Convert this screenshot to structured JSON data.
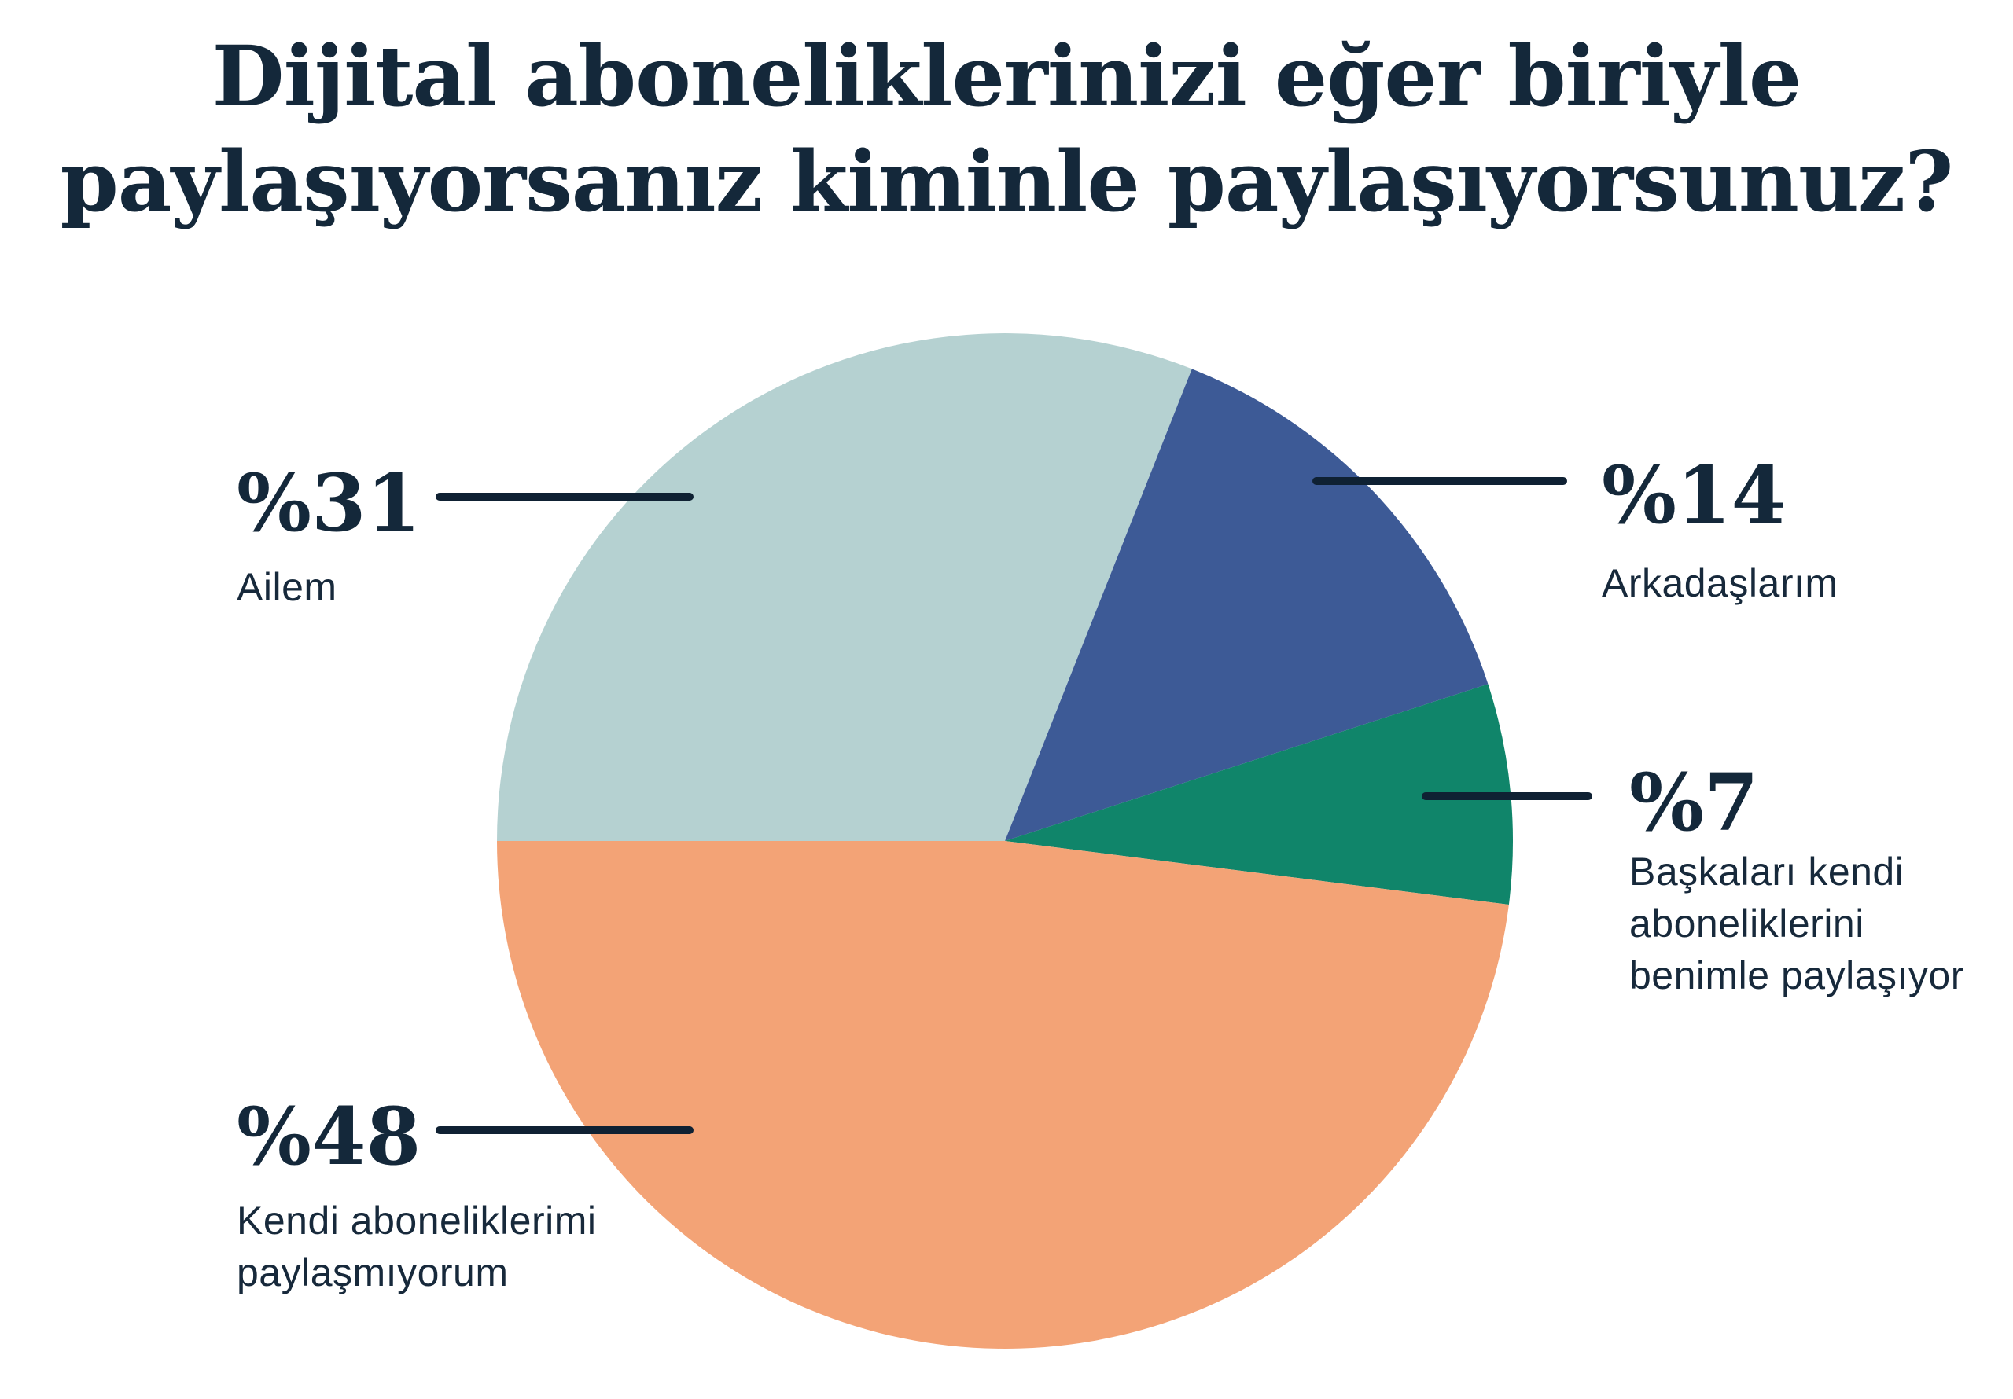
{
  "title": {
    "line1": "Dijital aboneliklerinizi eğer biriyle",
    "line2": "paylaşıyorsanız kiminle paylaşıyorsunuz?"
  },
  "colors": {
    "background": "#ffffff",
    "text": "#14283a",
    "leader_line": "#0f2133"
  },
  "chart_data": {
    "type": "pie",
    "title": "Dijital aboneliklerinizi eğer biriyle paylaşıyorsanız kiminle paylaşıyorsunuz?",
    "unit": "%",
    "start_angle": "west (9 o'clock), clockwise",
    "legend_position": "callout labels with leader lines",
    "slices": [
      {
        "label": "Ailem",
        "value": 31,
        "pct_label": "%31",
        "color": "#b5d1d1"
      },
      {
        "label": "Arkadaşlarım",
        "value": 14,
        "pct_label": "%14",
        "color": "#3d5a96"
      },
      {
        "label": "Başkaları kendi aboneliklerini benimle paylaşıyor",
        "value": 7,
        "pct_label": "%7",
        "color": "#10856a"
      },
      {
        "label": "Kendi aboneliklerimi paylaşmıyorum",
        "value": 48,
        "pct_label": "%48",
        "color": "#f3a376"
      }
    ]
  }
}
